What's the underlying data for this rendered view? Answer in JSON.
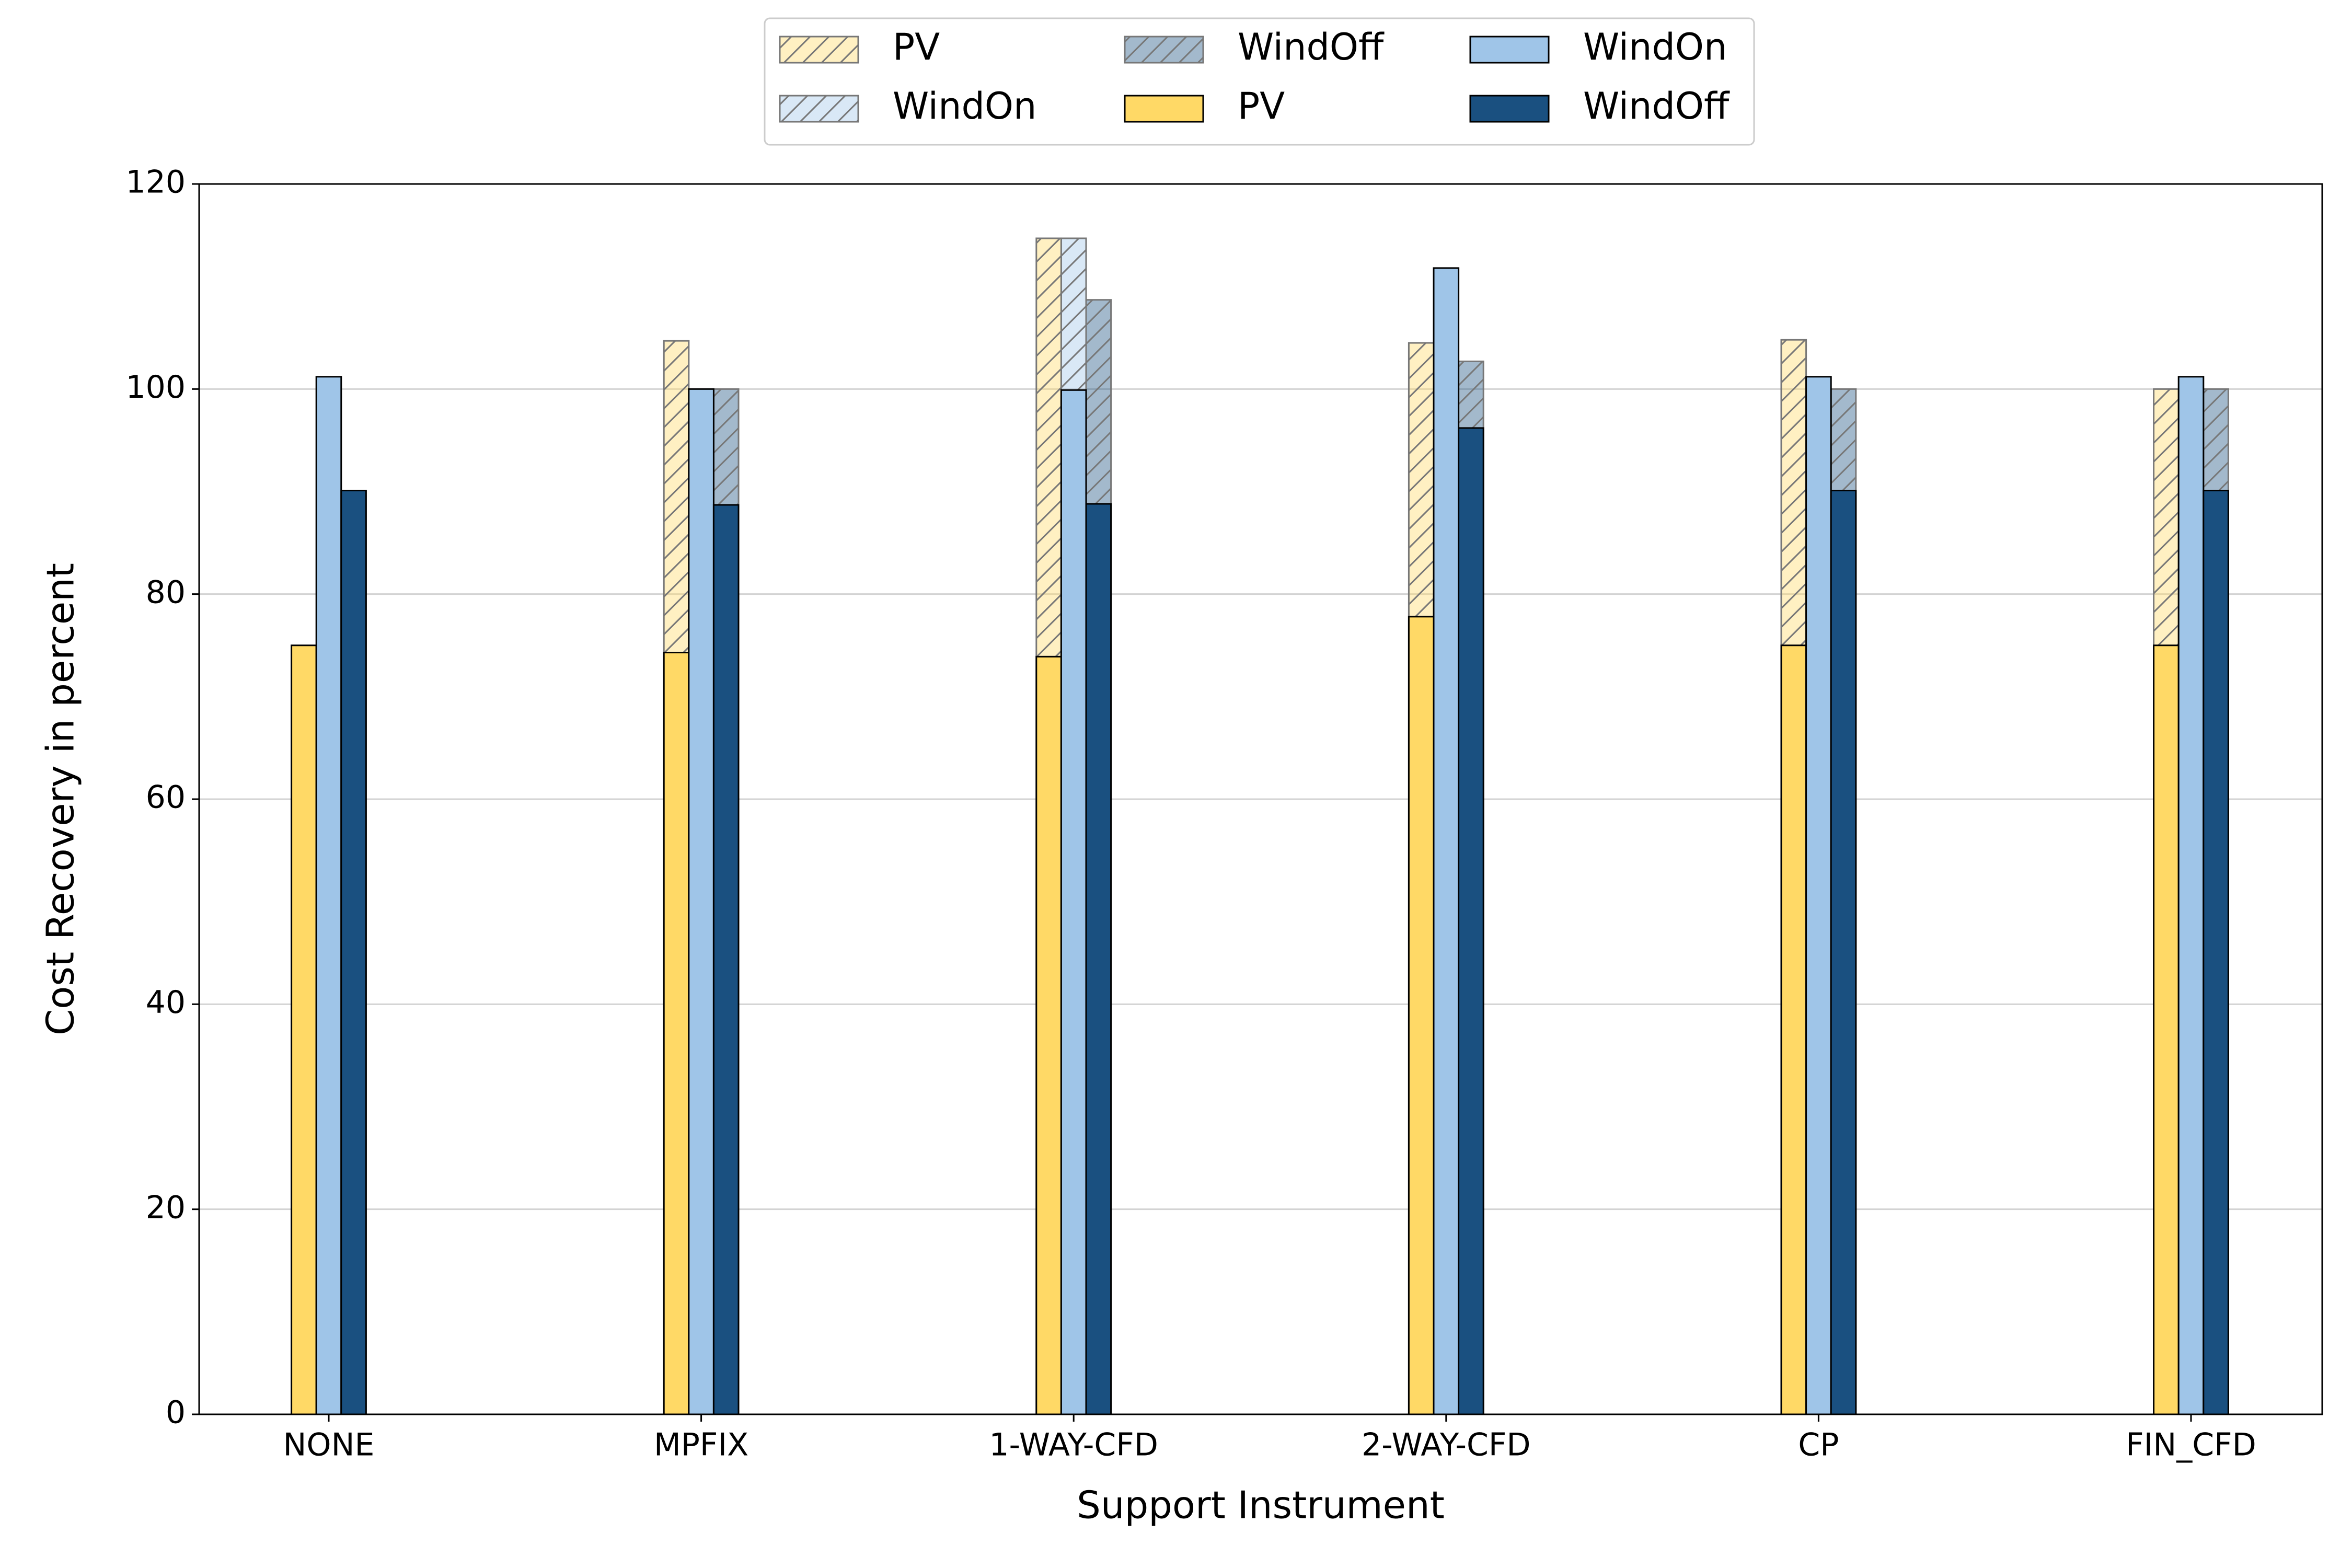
{
  "chart_data": {
    "type": "bar",
    "xlabel": "Support Instrument",
    "ylabel": "Cost Recovery in percent",
    "categories": [
      "NONE",
      "MPFIX",
      "1-WAY-CFD",
      "2-WAY-CFD",
      "CP",
      "FIN_CFD"
    ],
    "series": [
      {
        "name": "PV",
        "color": "#ffd966",
        "hatch": true,
        "values": [
          null,
          104.7,
          114.7,
          104.5,
          104.8,
          100
        ]
      },
      {
        "name": "WindOn",
        "color": "#9fc5e8",
        "hatch": true,
        "values": [
          null,
          null,
          114.7,
          null,
          null,
          null
        ]
      },
      {
        "name": "WindOff",
        "color": "#1a5080",
        "hatch": true,
        "values": [
          null,
          100,
          108.7,
          102.7,
          100,
          100
        ]
      },
      {
        "name": "PV",
        "color": "#ffd966",
        "hatch": false,
        "values": [
          75,
          74.3,
          73.9,
          77.8,
          75,
          75
        ]
      },
      {
        "name": "WindOn",
        "color": "#9fc5e8",
        "hatch": false,
        "values": [
          101.2,
          100,
          99.9,
          111.8,
          101.2,
          101.2
        ]
      },
      {
        "name": "WindOff",
        "color": "#1a5080",
        "hatch": false,
        "values": [
          90.1,
          88.7,
          88.8,
          96.2,
          90.1,
          90.1
        ]
      }
    ],
    "ylim": [
      0,
      120
    ],
    "yticks": [
      0,
      20,
      40,
      60,
      80,
      100,
      120
    ],
    "grid": true,
    "legend": "top"
  }
}
